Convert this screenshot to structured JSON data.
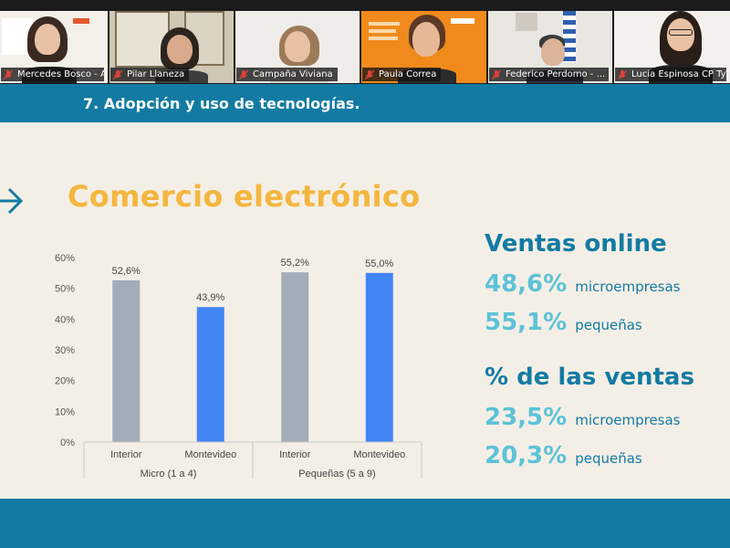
{
  "participants": [
    {
      "name": "Mercedes Bosco - A..."
    },
    {
      "name": "Pilar Llaneza"
    },
    {
      "name": "Campaña Viviana"
    },
    {
      "name": "Paula Correa"
    },
    {
      "name": "Federico Perdomo - ..."
    },
    {
      "name": "Lucia Espinosa CP TyT"
    }
  ],
  "slide": {
    "subtitle": "7. Adopción y uso de tecnologías.",
    "title": "Comercio electrónico",
    "ventas_online": {
      "heading": "Ventas online",
      "items": [
        {
          "value": "48,6%",
          "label": "microempresas"
        },
        {
          "value": "55,1%",
          "label": "pequeñas"
        }
      ]
    },
    "porcentaje_ventas": {
      "heading": "% de las ventas",
      "items": [
        {
          "value": "23,5%",
          "label": "microempresas"
        },
        {
          "value": "20,3%",
          "label": "pequeñas"
        }
      ]
    }
  },
  "colors": {
    "slide_blue": "#137ba3",
    "title_yellow": "#f4b63f",
    "stat_cyan": "#5cc2d8",
    "bar_gray": "#a3acb9",
    "bar_blue": "#4285f4"
  },
  "chart_data": {
    "type": "bar",
    "groups": [
      "Micro (1 a 4)",
      "Pequeñas (5 a 9)"
    ],
    "categories": [
      "Interior",
      "Montevideo",
      "Interior",
      "Montevideo"
    ],
    "values": [
      52.6,
      43.9,
      55.2,
      55.0
    ],
    "value_labels": [
      "52,6%",
      "43,9%",
      "55,2%",
      "55,0%"
    ],
    "colors": [
      "#a3acb9",
      "#4285f4",
      "#a3acb9",
      "#4285f4"
    ],
    "ylim": [
      0,
      60
    ],
    "yticks": [
      "0%",
      "10%",
      "20%",
      "30%",
      "40%",
      "50%",
      "60%"
    ],
    "grid": false
  }
}
